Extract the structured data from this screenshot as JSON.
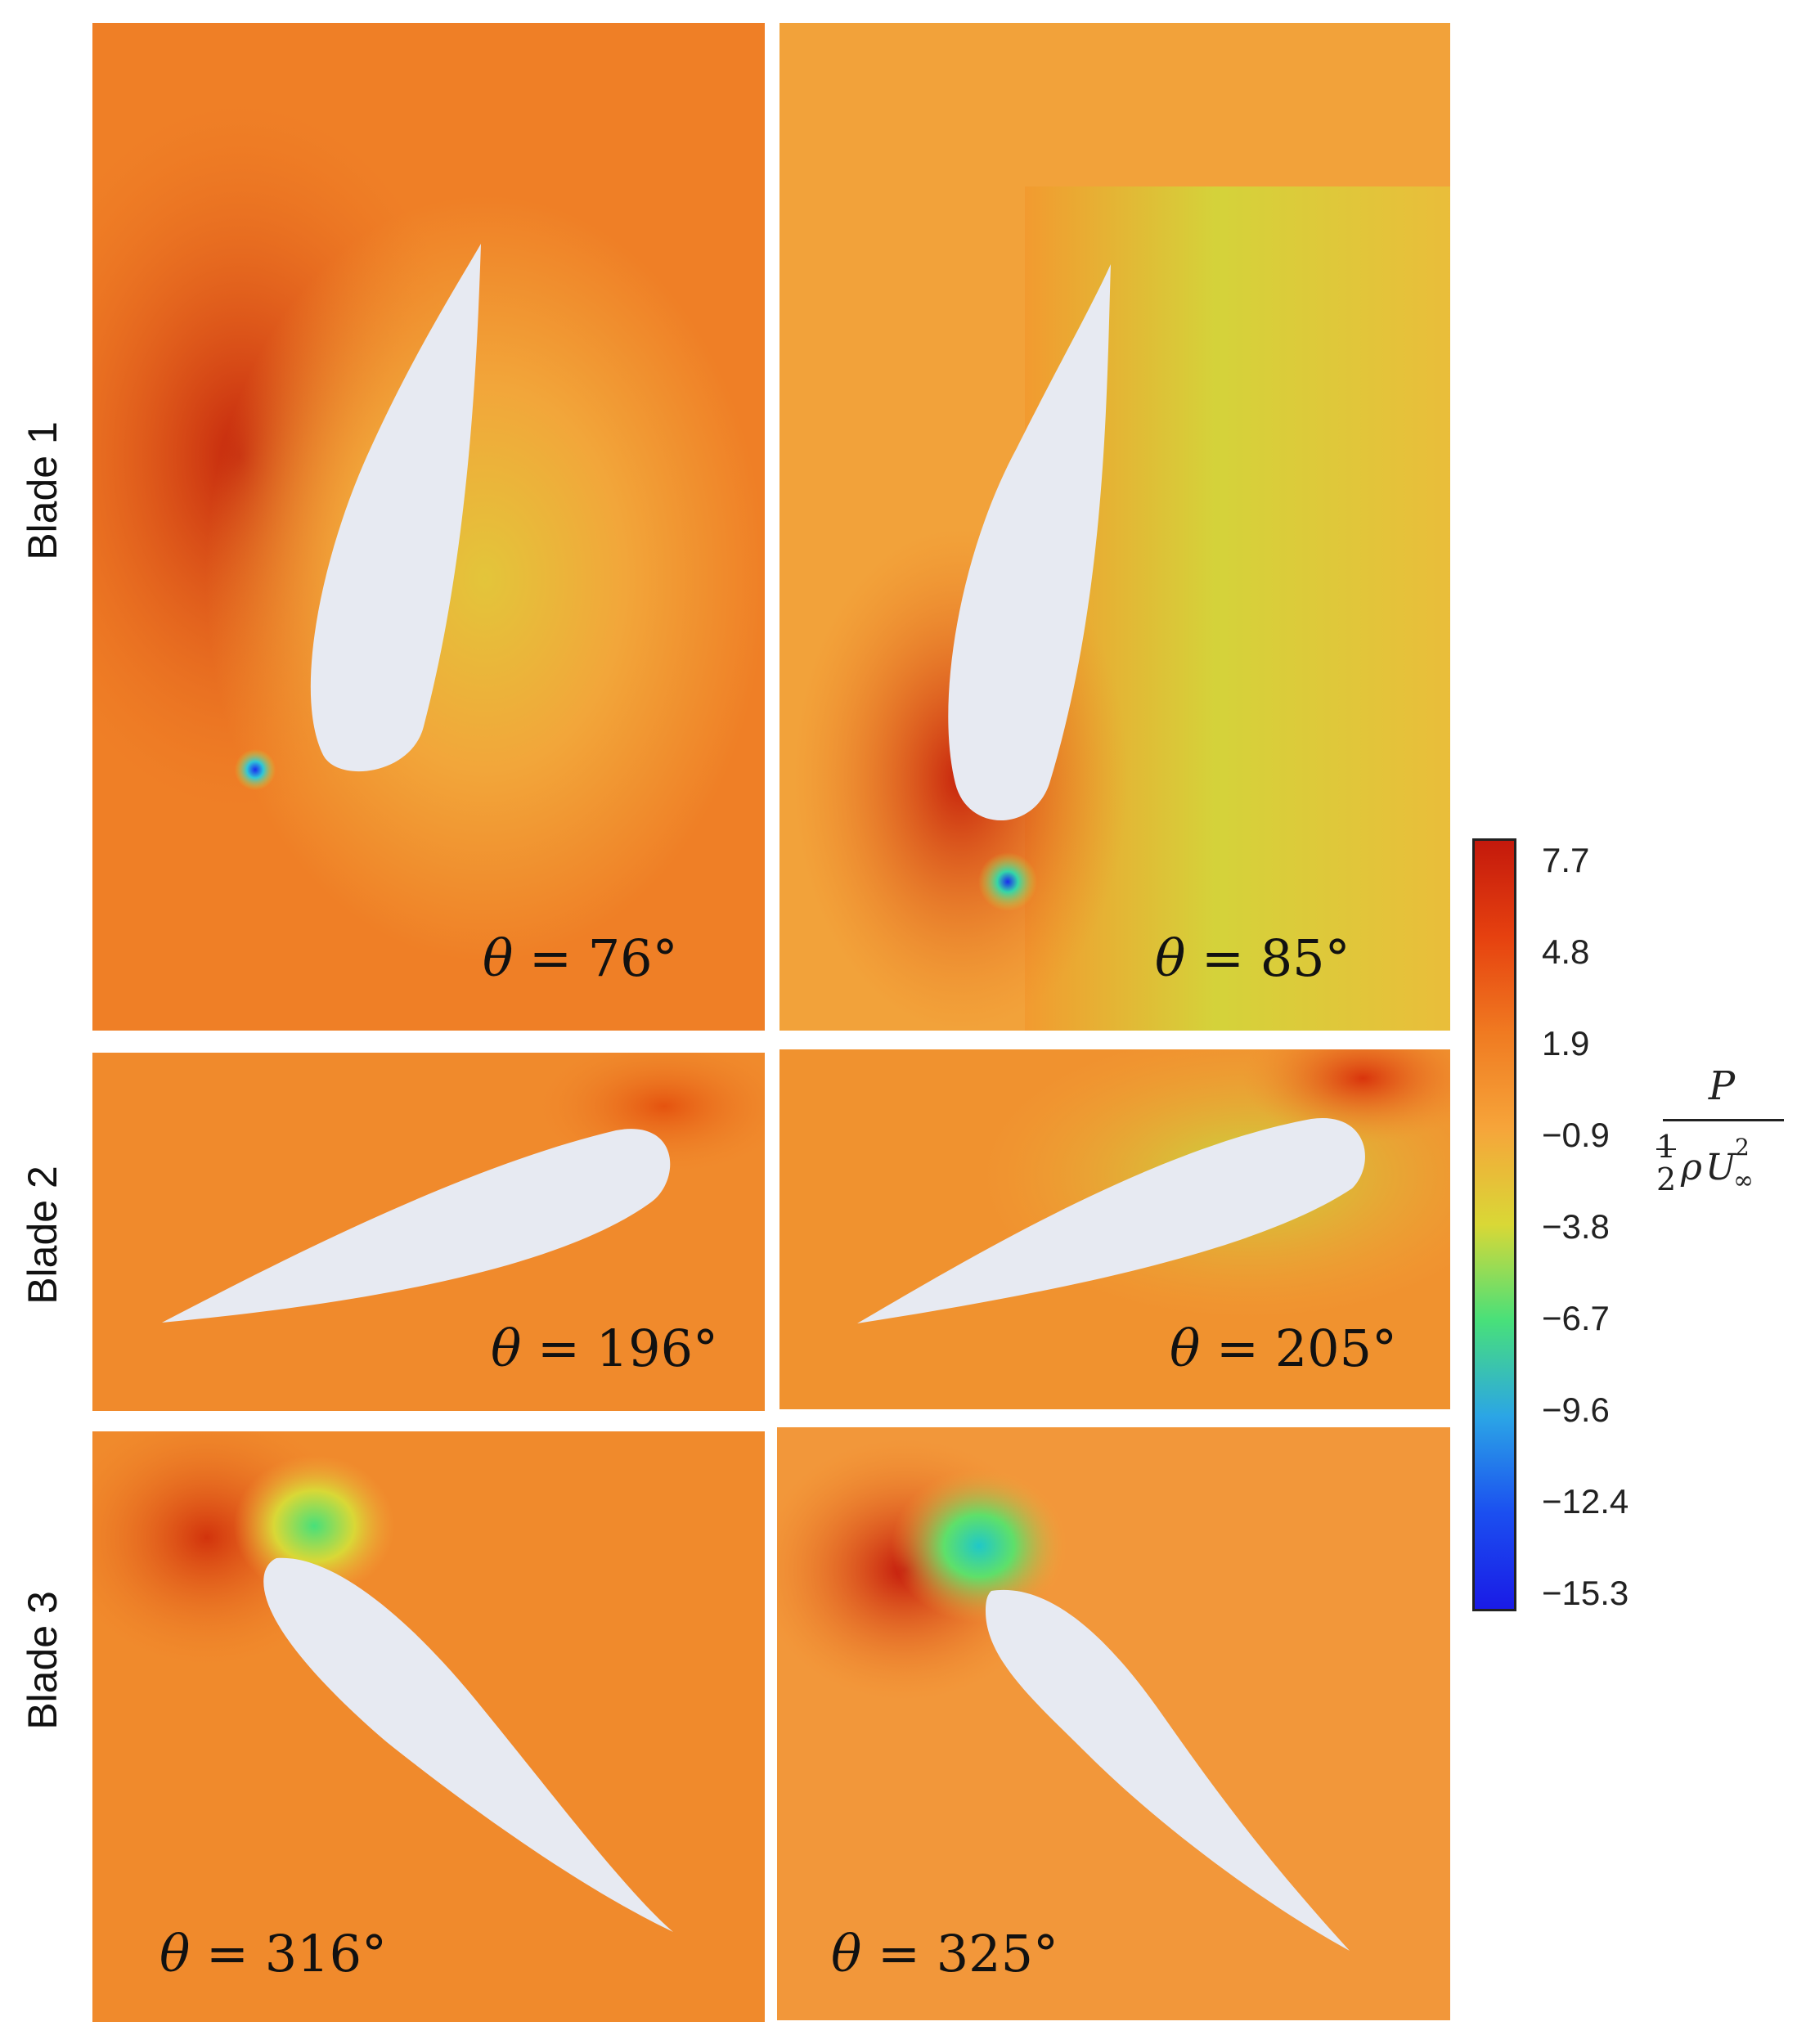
{
  "rows": [
    {
      "label": "Blade 1"
    },
    {
      "label": "Blade 2"
    },
    {
      "label": "Blade 3"
    }
  ],
  "panels": [
    {
      "theta": "76°"
    },
    {
      "theta": "85°"
    },
    {
      "theta": "196°"
    },
    {
      "theta": "205°"
    },
    {
      "theta": "316°"
    },
    {
      "theta": "325°"
    }
  ],
  "theta_symbol": "θ",
  "equals": "=",
  "colorbar": {
    "ticks": [
      "7.7",
      "4.8",
      "1.9",
      "−0.9",
      "−3.8",
      "−6.7",
      "−9.6",
      "−12.4",
      "−15.3"
    ],
    "label": {
      "numerator": "P",
      "den_one": "1",
      "den_two": "2",
      "den_rho": "ρ",
      "den_U": "U",
      "den_sup": "2",
      "den_sub": "∞"
    },
    "colors": [
      "#c4190c",
      "#e6410f",
      "#f07a21",
      "#f6a53a",
      "#d9d836",
      "#48e07a",
      "#2ba5e6",
      "#1b4ff0",
      "#1a1be6"
    ]
  },
  "field_colors": {
    "base": "#f28c2e",
    "high": "#c9250d",
    "low": "#1c2ef0",
    "mid": "#cfdb3a",
    "airfoil": "#e7eaf2"
  }
}
